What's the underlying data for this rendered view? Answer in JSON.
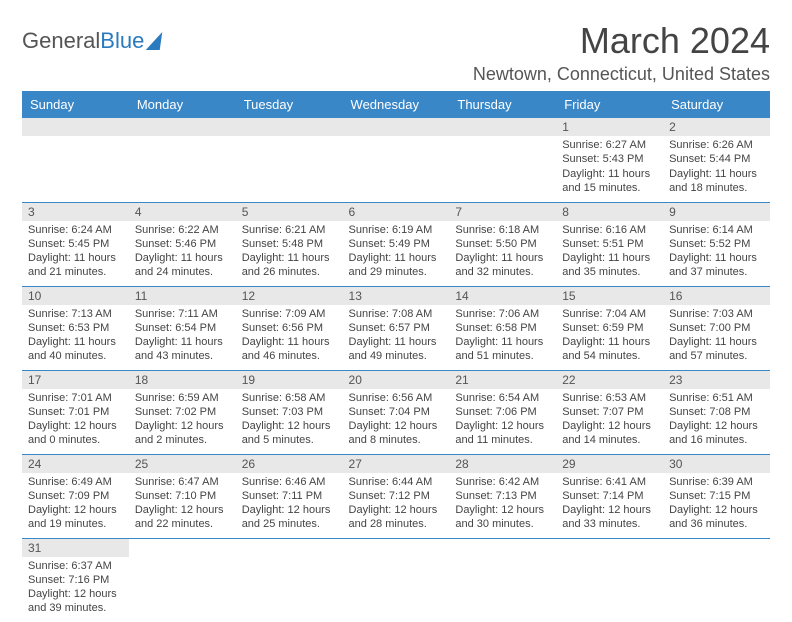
{
  "logo": {
    "text1": "General",
    "text2": "Blue"
  },
  "title": "March 2024",
  "location": "Newtown, Connecticut, United States",
  "colors": {
    "header_bg": "#3a87c8",
    "logo_blue": "#2a7abf",
    "border": "#3a87c8",
    "daybar": "#e8e8e8"
  },
  "day_headers": [
    "Sunday",
    "Monday",
    "Tuesday",
    "Wednesday",
    "Thursday",
    "Friday",
    "Saturday"
  ],
  "weeks": [
    [
      null,
      null,
      null,
      null,
      null,
      {
        "day": "1",
        "sunrise": "Sunrise: 6:27 AM",
        "sunset": "Sunset: 5:43 PM",
        "daylight1": "Daylight: 11 hours",
        "daylight2": "and 15 minutes."
      },
      {
        "day": "2",
        "sunrise": "Sunrise: 6:26 AM",
        "sunset": "Sunset: 5:44 PM",
        "daylight1": "Daylight: 11 hours",
        "daylight2": "and 18 minutes."
      }
    ],
    [
      {
        "day": "3",
        "sunrise": "Sunrise: 6:24 AM",
        "sunset": "Sunset: 5:45 PM",
        "daylight1": "Daylight: 11 hours",
        "daylight2": "and 21 minutes."
      },
      {
        "day": "4",
        "sunrise": "Sunrise: 6:22 AM",
        "sunset": "Sunset: 5:46 PM",
        "daylight1": "Daylight: 11 hours",
        "daylight2": "and 24 minutes."
      },
      {
        "day": "5",
        "sunrise": "Sunrise: 6:21 AM",
        "sunset": "Sunset: 5:48 PM",
        "daylight1": "Daylight: 11 hours",
        "daylight2": "and 26 minutes."
      },
      {
        "day": "6",
        "sunrise": "Sunrise: 6:19 AM",
        "sunset": "Sunset: 5:49 PM",
        "daylight1": "Daylight: 11 hours",
        "daylight2": "and 29 minutes."
      },
      {
        "day": "7",
        "sunrise": "Sunrise: 6:18 AM",
        "sunset": "Sunset: 5:50 PM",
        "daylight1": "Daylight: 11 hours",
        "daylight2": "and 32 minutes."
      },
      {
        "day": "8",
        "sunrise": "Sunrise: 6:16 AM",
        "sunset": "Sunset: 5:51 PM",
        "daylight1": "Daylight: 11 hours",
        "daylight2": "and 35 minutes."
      },
      {
        "day": "9",
        "sunrise": "Sunrise: 6:14 AM",
        "sunset": "Sunset: 5:52 PM",
        "daylight1": "Daylight: 11 hours",
        "daylight2": "and 37 minutes."
      }
    ],
    [
      {
        "day": "10",
        "sunrise": "Sunrise: 7:13 AM",
        "sunset": "Sunset: 6:53 PM",
        "daylight1": "Daylight: 11 hours",
        "daylight2": "and 40 minutes."
      },
      {
        "day": "11",
        "sunrise": "Sunrise: 7:11 AM",
        "sunset": "Sunset: 6:54 PM",
        "daylight1": "Daylight: 11 hours",
        "daylight2": "and 43 minutes."
      },
      {
        "day": "12",
        "sunrise": "Sunrise: 7:09 AM",
        "sunset": "Sunset: 6:56 PM",
        "daylight1": "Daylight: 11 hours",
        "daylight2": "and 46 minutes."
      },
      {
        "day": "13",
        "sunrise": "Sunrise: 7:08 AM",
        "sunset": "Sunset: 6:57 PM",
        "daylight1": "Daylight: 11 hours",
        "daylight2": "and 49 minutes."
      },
      {
        "day": "14",
        "sunrise": "Sunrise: 7:06 AM",
        "sunset": "Sunset: 6:58 PM",
        "daylight1": "Daylight: 11 hours",
        "daylight2": "and 51 minutes."
      },
      {
        "day": "15",
        "sunrise": "Sunrise: 7:04 AM",
        "sunset": "Sunset: 6:59 PM",
        "daylight1": "Daylight: 11 hours",
        "daylight2": "and 54 minutes."
      },
      {
        "day": "16",
        "sunrise": "Sunrise: 7:03 AM",
        "sunset": "Sunset: 7:00 PM",
        "daylight1": "Daylight: 11 hours",
        "daylight2": "and 57 minutes."
      }
    ],
    [
      {
        "day": "17",
        "sunrise": "Sunrise: 7:01 AM",
        "sunset": "Sunset: 7:01 PM",
        "daylight1": "Daylight: 12 hours",
        "daylight2": "and 0 minutes."
      },
      {
        "day": "18",
        "sunrise": "Sunrise: 6:59 AM",
        "sunset": "Sunset: 7:02 PM",
        "daylight1": "Daylight: 12 hours",
        "daylight2": "and 2 minutes."
      },
      {
        "day": "19",
        "sunrise": "Sunrise: 6:58 AM",
        "sunset": "Sunset: 7:03 PM",
        "daylight1": "Daylight: 12 hours",
        "daylight2": "and 5 minutes."
      },
      {
        "day": "20",
        "sunrise": "Sunrise: 6:56 AM",
        "sunset": "Sunset: 7:04 PM",
        "daylight1": "Daylight: 12 hours",
        "daylight2": "and 8 minutes."
      },
      {
        "day": "21",
        "sunrise": "Sunrise: 6:54 AM",
        "sunset": "Sunset: 7:06 PM",
        "daylight1": "Daylight: 12 hours",
        "daylight2": "and 11 minutes."
      },
      {
        "day": "22",
        "sunrise": "Sunrise: 6:53 AM",
        "sunset": "Sunset: 7:07 PM",
        "daylight1": "Daylight: 12 hours",
        "daylight2": "and 14 minutes."
      },
      {
        "day": "23",
        "sunrise": "Sunrise: 6:51 AM",
        "sunset": "Sunset: 7:08 PM",
        "daylight1": "Daylight: 12 hours",
        "daylight2": "and 16 minutes."
      }
    ],
    [
      {
        "day": "24",
        "sunrise": "Sunrise: 6:49 AM",
        "sunset": "Sunset: 7:09 PM",
        "daylight1": "Daylight: 12 hours",
        "daylight2": "and 19 minutes."
      },
      {
        "day": "25",
        "sunrise": "Sunrise: 6:47 AM",
        "sunset": "Sunset: 7:10 PM",
        "daylight1": "Daylight: 12 hours",
        "daylight2": "and 22 minutes."
      },
      {
        "day": "26",
        "sunrise": "Sunrise: 6:46 AM",
        "sunset": "Sunset: 7:11 PM",
        "daylight1": "Daylight: 12 hours",
        "daylight2": "and 25 minutes."
      },
      {
        "day": "27",
        "sunrise": "Sunrise: 6:44 AM",
        "sunset": "Sunset: 7:12 PM",
        "daylight1": "Daylight: 12 hours",
        "daylight2": "and 28 minutes."
      },
      {
        "day": "28",
        "sunrise": "Sunrise: 6:42 AM",
        "sunset": "Sunset: 7:13 PM",
        "daylight1": "Daylight: 12 hours",
        "daylight2": "and 30 minutes."
      },
      {
        "day": "29",
        "sunrise": "Sunrise: 6:41 AM",
        "sunset": "Sunset: 7:14 PM",
        "daylight1": "Daylight: 12 hours",
        "daylight2": "and 33 minutes."
      },
      {
        "day": "30",
        "sunrise": "Sunrise: 6:39 AM",
        "sunset": "Sunset: 7:15 PM",
        "daylight1": "Daylight: 12 hours",
        "daylight2": "and 36 minutes."
      }
    ],
    [
      {
        "day": "31",
        "sunrise": "Sunrise: 6:37 AM",
        "sunset": "Sunset: 7:16 PM",
        "daylight1": "Daylight: 12 hours",
        "daylight2": "and 39 minutes."
      },
      null,
      null,
      null,
      null,
      null,
      null
    ]
  ]
}
